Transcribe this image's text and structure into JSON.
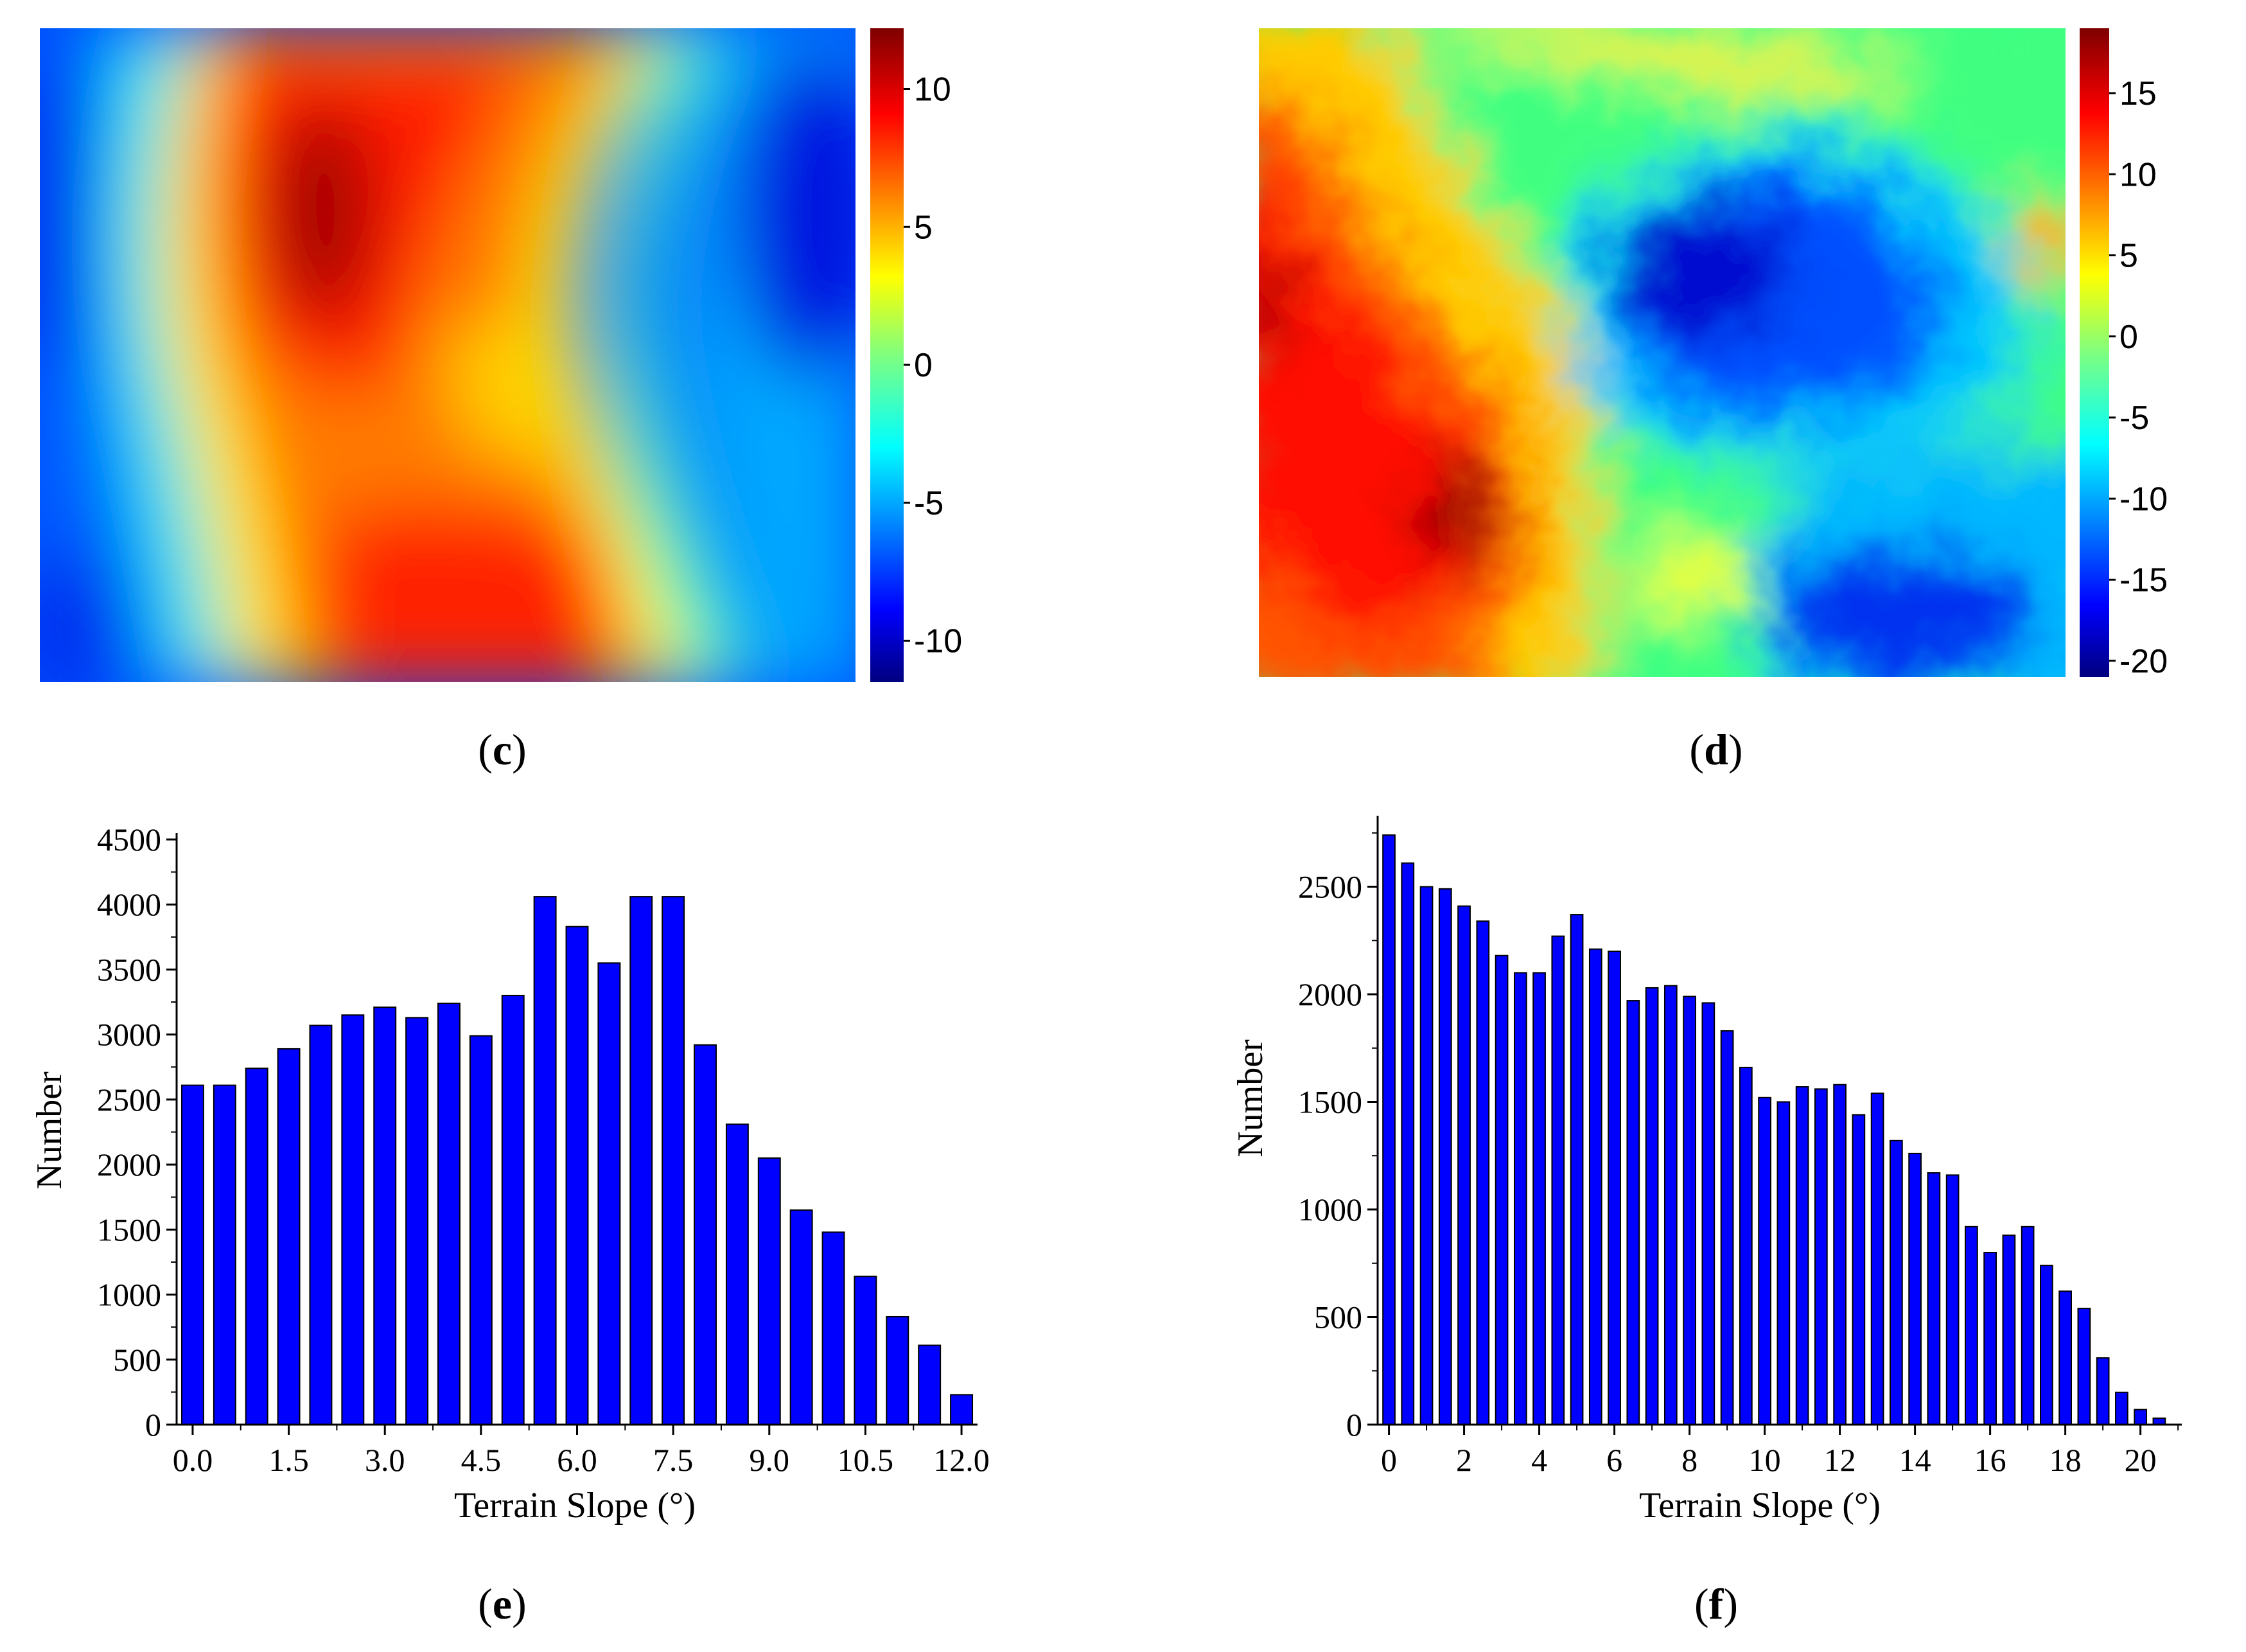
{
  "chart_data": [
    {
      "panel": "c",
      "type": "heatmap",
      "colormap": "jet",
      "colorbar": {
        "range": [
          -11.5,
          12.2
        ],
        "ticks": [
          10,
          5,
          0,
          -5,
          -10
        ]
      }
    },
    {
      "panel": "d",
      "type": "heatmap",
      "colormap": "jet",
      "colorbar": {
        "range": [
          -21,
          19
        ],
        "ticks": [
          15,
          10,
          5,
          0,
          -5,
          -10,
          -15,
          -20
        ]
      }
    },
    {
      "panel": "e",
      "type": "bar",
      "xlabel": "Terrain Slope (°)",
      "ylabel": "Number",
      "xlim": [
        -0.25,
        12.25
      ],
      "ylim": [
        0,
        4500
      ],
      "x_ticks": [
        "0.0",
        "1.5",
        "3.0",
        "4.5",
        "6.0",
        "7.5",
        "9.0",
        "10.5",
        "12.0"
      ],
      "y_ticks": [
        "0",
        "500",
        "1000",
        "1500",
        "2000",
        "2500",
        "3000",
        "3500",
        "4000",
        "4500"
      ],
      "bar_color": "#0000ff",
      "x": [
        0,
        0.5,
        1,
        1.5,
        2,
        2.5,
        3,
        3.5,
        4,
        4.5,
        5,
        5.5,
        6,
        6.5,
        7,
        7.5,
        8,
        8.5,
        9,
        9.5,
        10,
        10.5,
        11,
        11.5,
        12
      ],
      "values": [
        2610,
        2610,
        2740,
        2890,
        3070,
        3150,
        3210,
        3130,
        3240,
        2990,
        3300,
        4060,
        3830,
        3550,
        4060,
        4060,
        2920,
        2310,
        2050,
        1650,
        1480,
        1140,
        830,
        610,
        230
      ]
    },
    {
      "panel": "f",
      "type": "bar",
      "xlabel": "Terrain Slope (°)",
      "ylabel": "Number",
      "xlim": [
        -0.3,
        21.1
      ],
      "ylim": [
        0,
        2800
      ],
      "x_ticks": [
        "0",
        "2",
        "4",
        "6",
        "8",
        "10",
        "12",
        "14",
        "16",
        "18",
        "20"
      ],
      "y_ticks": [
        "0",
        "500",
        "1000",
        "1500",
        "2000",
        "2500"
      ],
      "bar_color": "#0000ff",
      "x": [
        0,
        0.5,
        1,
        1.5,
        2,
        2.5,
        3,
        3.5,
        4,
        4.5,
        5,
        5.5,
        6,
        6.5,
        7,
        7.5,
        8,
        8.5,
        9,
        9.5,
        10,
        10.5,
        11,
        11.5,
        12,
        12.5,
        13,
        13.5,
        14,
        14.5,
        15,
        15.5,
        16,
        16.5,
        17,
        17.5,
        18,
        18.5,
        19,
        19.5,
        20,
        20.5
      ],
      "values": [
        2740,
        2610,
        2500,
        2490,
        2410,
        2340,
        2180,
        2100,
        2100,
        2270,
        2370,
        2210,
        2200,
        1970,
        2030,
        2040,
        1990,
        1960,
        1830,
        1660,
        1520,
        1500,
        1570,
        1560,
        1580,
        1440,
        1540,
        1320,
        1260,
        1170,
        1160,
        920,
        800,
        880,
        920,
        740,
        620,
        540,
        310,
        150,
        70,
        30
      ]
    }
  ],
  "labels": {
    "c": "c",
    "d": "d",
    "e": "e",
    "f": "f"
  }
}
